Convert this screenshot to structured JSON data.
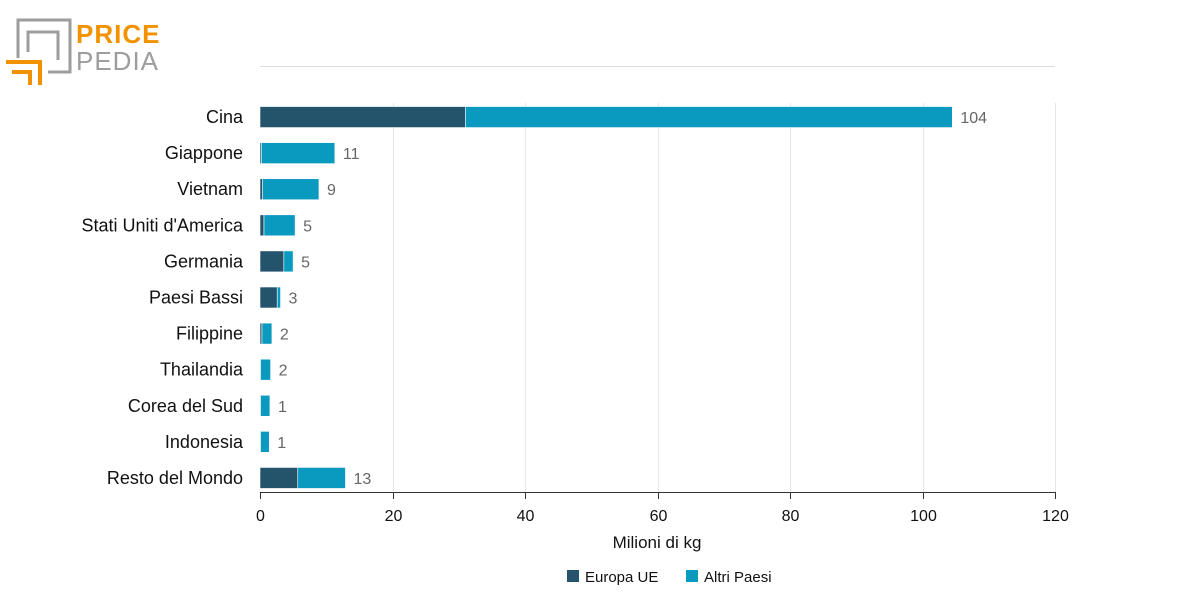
{
  "brand": {
    "line1": "PRICE",
    "line2": "PEDIA",
    "colors": {
      "orange": "#f39200",
      "gray": "#9d9d9d"
    }
  },
  "chart_data": {
    "type": "bar",
    "orientation": "horizontal",
    "stacked": true,
    "categories": [
      "Cina",
      "Giappone",
      "Vietnam",
      "Stati Uniti d'America",
      "Germania",
      "Paesi Bassi",
      "Filippine",
      "Thailandia",
      "Corea del Sud",
      "Indonesia",
      "Resto del Mondo"
    ],
    "series": [
      {
        "name": "Europa UE",
        "color": "#24546b",
        "values": [
          31.0,
          0.2,
          0.4,
          0.6,
          3.6,
          2.6,
          0.3,
          0.1,
          0.1,
          0.1,
          5.7
        ]
      },
      {
        "name": "Altri Paesi",
        "color": "#0a9ac0",
        "values": [
          73.5,
          11.1,
          8.5,
          4.7,
          1.4,
          0.5,
          1.5,
          1.5,
          1.4,
          1.3,
          7.2
        ]
      }
    ],
    "totals": [
      "104",
      "11",
      "9",
      "5",
      "5",
      "3",
      "2",
      "2",
      "1",
      "1",
      "13"
    ],
    "xlabel": "Milioni di kg",
    "xlim": [
      0,
      120
    ],
    "xticks": [
      0,
      20,
      40,
      60,
      80,
      100,
      120
    ],
    "grid": true,
    "legend_position": "bottom-center"
  }
}
